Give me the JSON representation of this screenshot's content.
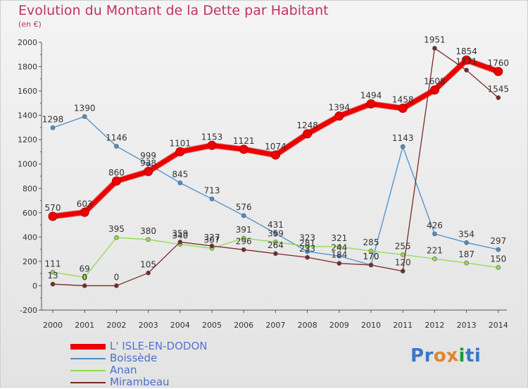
{
  "header": {
    "title": "Evolution du Montant de la Dette par Habitant",
    "subtitle": "(en €)"
  },
  "brand": {
    "letters": [
      "P",
      "r",
      "o",
      "x",
      "i",
      "t",
      "i"
    ],
    "colors": [
      "#3a77c8",
      "#3a77c8",
      "#e0852b",
      "#e0852b",
      "#1a9a3a",
      "#3a77c8",
      "#3a77c8"
    ]
  },
  "chart_data": {
    "type": "line",
    "title": "Evolution du Montant de la Dette par Habitant",
    "subtitle": "(en €)",
    "xlabel": "",
    "ylabel": "",
    "categories": [
      "2000",
      "2001",
      "2002",
      "2003",
      "2004",
      "2005",
      "2006",
      "2007",
      "2008",
      "2009",
      "2010",
      "2011",
      "2012",
      "2013",
      "2014"
    ],
    "ylim": [
      -200,
      2000
    ],
    "yticks": [
      -200,
      0,
      200,
      400,
      600,
      800,
      1000,
      1200,
      1400,
      1600,
      1800,
      2000
    ],
    "grid": false,
    "legend_position": "bottom-left",
    "series": [
      {
        "name": "L' ISLE-EN-DODON",
        "color": "#ee0000",
        "values": [
          570,
          603,
          860,
          938,
          1101,
          1153,
          1121,
          1074,
          1248,
          1394,
          1494,
          1458,
          1608,
          1854,
          1760
        ]
      },
      {
        "name": "Boissède",
        "color": "#4a8fcc",
        "values": [
          1298,
          1390,
          1146,
          999,
          845,
          713,
          576,
          431,
          281,
          244,
          170,
          1143,
          426,
          354,
          297
        ]
      },
      {
        "name": "Anan",
        "color": "#8fdc4a",
        "values": [
          111,
          69,
          395,
          380,
          340,
          307,
          391,
          359,
          323,
          321,
          285,
          255,
          221,
          187,
          150
        ]
      },
      {
        "name": "Mirambeau",
        "color": "#7a2828",
        "values": [
          13,
          0,
          0,
          105,
          359,
          327,
          296,
          264,
          233,
          184,
          170,
          120,
          1951,
          1771,
          1545
        ]
      }
    ]
  }
}
